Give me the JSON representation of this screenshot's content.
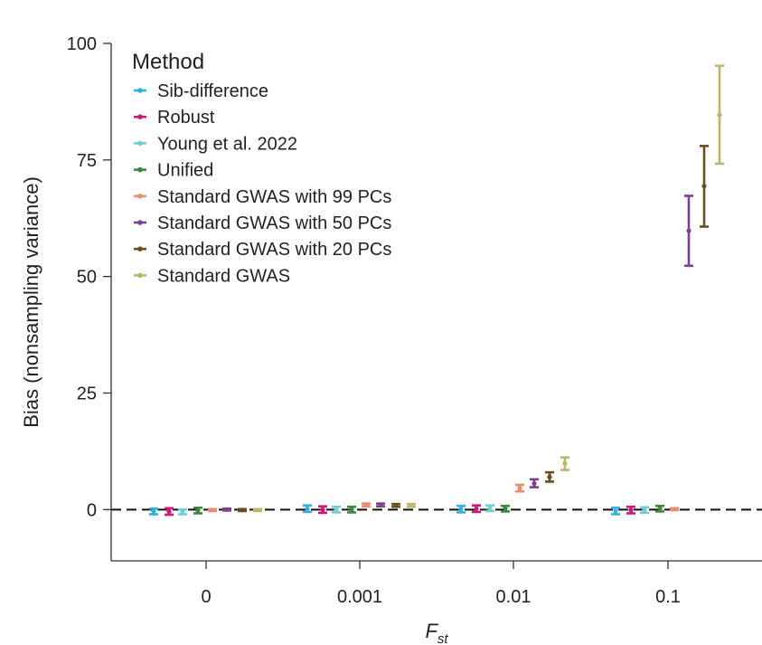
{
  "chart_data": {
    "type": "scatter",
    "xlabel_main": "F",
    "xlabel_sub": "st",
    "ylabel": "Bias (nonsampling variance)",
    "ylim": [
      -11,
      100
    ],
    "yticks": [
      "0",
      "25",
      "50",
      "75",
      "100"
    ],
    "categories": [
      "0",
      "0.001",
      "0.01",
      "0.1"
    ],
    "reference_line": 0,
    "legend": {
      "title": "Method",
      "placement": "top-left"
    },
    "series": [
      {
        "name": "Sib-difference",
        "color": "#2fb2e0",
        "values": [
          {
            "y": -0.4,
            "lo": -1.0,
            "hi": 0.2
          },
          {
            "y": 0.2,
            "lo": -0.5,
            "hi": 0.9
          },
          {
            "y": 0.1,
            "lo": -0.6,
            "hi": 0.8
          },
          {
            "y": -0.3,
            "lo": -1.0,
            "hi": 0.4
          }
        ]
      },
      {
        "name": "Robust",
        "color": "#d6157b",
        "values": [
          {
            "y": -0.4,
            "lo": -1.1,
            "hi": 0.3
          },
          {
            "y": 0.0,
            "lo": -0.7,
            "hi": 0.7
          },
          {
            "y": 0.2,
            "lo": -0.5,
            "hi": 0.9
          },
          {
            "y": -0.1,
            "lo": -0.8,
            "hi": 0.6
          }
        ]
      },
      {
        "name": "Young et al. 2022",
        "color": "#6fd0d3",
        "values": [
          {
            "y": -0.5,
            "lo": -1.0,
            "hi": 0.0
          },
          {
            "y": 0.0,
            "lo": -0.6,
            "hi": 0.6
          },
          {
            "y": 0.3,
            "lo": -0.3,
            "hi": 0.9
          },
          {
            "y": -0.1,
            "lo": -0.7,
            "hi": 0.5
          }
        ]
      },
      {
        "name": "Unified",
        "color": "#3a8a3c",
        "values": [
          {
            "y": -0.2,
            "lo": -0.8,
            "hi": 0.4
          },
          {
            "y": 0.0,
            "lo": -0.6,
            "hi": 0.6
          },
          {
            "y": 0.2,
            "lo": -0.4,
            "hi": 0.8
          },
          {
            "y": 0.2,
            "lo": -0.4,
            "hi": 0.8
          }
        ]
      },
      {
        "name": "Standard GWAS with 99 PCs",
        "color": "#ec8c6a",
        "values": [
          {
            "y": -0.1,
            "lo": -0.3,
            "hi": 0.1
          },
          {
            "y": 1.0,
            "lo": 0.7,
            "hi": 1.3
          },
          {
            "y": 4.6,
            "lo": 3.9,
            "hi": 5.3
          },
          {
            "y": 0.1,
            "lo": -0.1,
            "hi": 0.3
          }
        ]
      },
      {
        "name": "Standard GWAS with 50 PCs",
        "color": "#7e3f98",
        "values": [
          {
            "y": 0.0,
            "lo": -0.2,
            "hi": 0.2
          },
          {
            "y": 1.0,
            "lo": 0.7,
            "hi": 1.3
          },
          {
            "y": 5.6,
            "lo": 4.8,
            "hi": 6.5
          },
          {
            "y": 59.8,
            "lo": 52.3,
            "hi": 67.3
          }
        ]
      },
      {
        "name": "Standard GWAS with 20 PCs",
        "color": "#6b4d1e",
        "values": [
          {
            "y": -0.1,
            "lo": -0.3,
            "hi": 0.1
          },
          {
            "y": 0.9,
            "lo": 0.6,
            "hi": 1.2
          },
          {
            "y": 7.0,
            "lo": 6.0,
            "hi": 8.0
          },
          {
            "y": 69.4,
            "lo": 60.7,
            "hi": 78.0
          }
        ]
      },
      {
        "name": "Standard GWAS",
        "color": "#bdb667",
        "values": [
          {
            "y": -0.1,
            "lo": -0.3,
            "hi": 0.1
          },
          {
            "y": 0.9,
            "lo": 0.6,
            "hi": 1.2
          },
          {
            "y": 9.9,
            "lo": 8.5,
            "hi": 11.2
          },
          {
            "y": 84.7,
            "lo": 74.2,
            "hi": 95.2
          }
        ]
      }
    ]
  }
}
